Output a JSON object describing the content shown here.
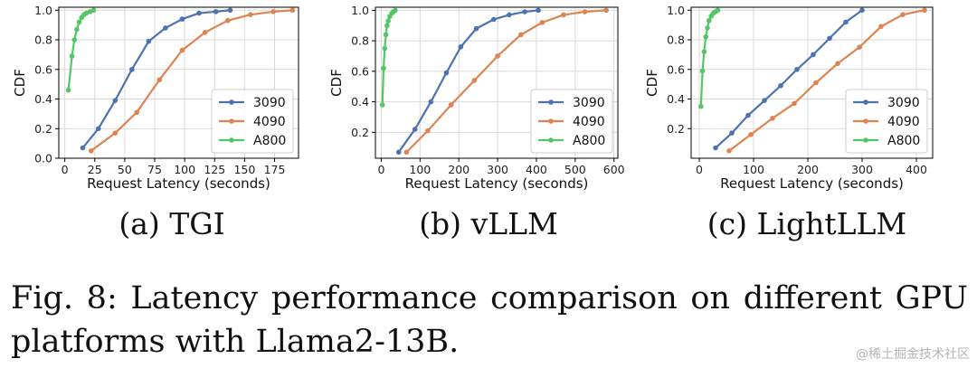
{
  "chart_data": [
    {
      "type": "line",
      "title": "",
      "xlabel": "Request Latency (seconds)",
      "ylabel": "CDF",
      "xlim": [
        -5,
        195
      ],
      "ylim": [
        0,
        1.02
      ],
      "xticks": [
        0,
        25,
        50,
        75,
        100,
        125,
        150,
        175
      ],
      "yticks": [
        0.0,
        0.2,
        0.4,
        0.6,
        0.8,
        1.0
      ],
      "ytick_labels": [
        "0.0",
        "0.2",
        "0.4",
        "0.6",
        "0.8",
        "1.0"
      ],
      "grid": true,
      "legend_position": "lower-right",
      "series": [
        {
          "name": "3090",
          "color": "#4c72b0",
          "x": [
            15,
            28,
            42,
            56,
            70,
            84,
            98,
            112,
            126,
            138
          ],
          "y": [
            0.07,
            0.2,
            0.39,
            0.6,
            0.79,
            0.88,
            0.94,
            0.98,
            0.99,
            1.0
          ]
        },
        {
          "name": "4090",
          "color": "#dd8452",
          "x": [
            22,
            42,
            60,
            79,
            98,
            117,
            136,
            155,
            174,
            190
          ],
          "y": [
            0.05,
            0.17,
            0.31,
            0.53,
            0.73,
            0.85,
            0.93,
            0.97,
            0.99,
            1.0
          ]
        },
        {
          "name": "A800",
          "color": "#55c667",
          "x": [
            3,
            6,
            8,
            10,
            12,
            14,
            16,
            18,
            21,
            24
          ],
          "y": [
            0.46,
            0.69,
            0.8,
            0.87,
            0.92,
            0.95,
            0.97,
            0.98,
            0.99,
            1.0
          ]
        }
      ]
    },
    {
      "type": "line",
      "title": "",
      "xlabel": "Request Latency (seconds)",
      "ylabel": "CDF",
      "xlim": [
        -15,
        610
      ],
      "ylim": [
        0.03,
        1.02
      ],
      "xticks": [
        0,
        100,
        200,
        300,
        400,
        500,
        600
      ],
      "yticks": [
        0.2,
        0.4,
        0.6,
        0.8,
        1.0
      ],
      "ytick_labels": [
        "0.2",
        "0.4",
        "0.6",
        "0.8",
        "1.0"
      ],
      "grid": true,
      "legend_position": "lower-right",
      "series": [
        {
          "name": "3090",
          "color": "#4c72b0",
          "x": [
            45,
            87,
            128,
            168,
            205,
            245,
            290,
            330,
            370,
            405
          ],
          "y": [
            0.07,
            0.22,
            0.4,
            0.59,
            0.76,
            0.88,
            0.94,
            0.97,
            0.99,
            1.0
          ]
        },
        {
          "name": "4090",
          "color": "#dd8452",
          "x": [
            65,
            120,
            180,
            240,
            300,
            360,
            415,
            470,
            525,
            580
          ],
          "y": [
            0.07,
            0.21,
            0.38,
            0.54,
            0.7,
            0.84,
            0.92,
            0.97,
            0.99,
            1.0
          ]
        },
        {
          "name": "A800",
          "color": "#55c667",
          "x": [
            3,
            6,
            9,
            12,
            15,
            18,
            22,
            27,
            31,
            36
          ],
          "y": [
            0.38,
            0.62,
            0.75,
            0.84,
            0.9,
            0.93,
            0.96,
            0.98,
            0.99,
            1.0
          ]
        }
      ]
    },
    {
      "type": "line",
      "title": "",
      "xlabel": "Request Latency (seconds)",
      "ylabel": "CDF",
      "xlim": [
        -15,
        430
      ],
      "ylim": [
        0.0,
        1.02
      ],
      "xticks": [
        0,
        100,
        200,
        300,
        400
      ],
      "yticks": [
        0.2,
        0.4,
        0.6,
        0.8,
        1.0
      ],
      "ytick_labels": [
        "0.2",
        "0.4",
        "0.6",
        "0.8",
        "1.0"
      ],
      "grid": true,
      "legend_position": "lower-right",
      "series": [
        {
          "name": "3090",
          "color": "#4c72b0",
          "x": [
            30,
            60,
            90,
            120,
            150,
            180,
            210,
            240,
            270,
            300
          ],
          "y": [
            0.07,
            0.17,
            0.29,
            0.39,
            0.49,
            0.6,
            0.7,
            0.81,
            0.92,
            1.0
          ]
        },
        {
          "name": "4090",
          "color": "#dd8452",
          "x": [
            55,
            95,
            135,
            175,
            215,
            255,
            295,
            335,
            375,
            415
          ],
          "y": [
            0.05,
            0.16,
            0.27,
            0.37,
            0.51,
            0.64,
            0.75,
            0.89,
            0.97,
            1.0
          ]
        },
        {
          "name": "A800",
          "color": "#55c667",
          "x": [
            3,
            6,
            9,
            12,
            15,
            18,
            22,
            26,
            30,
            34
          ],
          "y": [
            0.35,
            0.59,
            0.72,
            0.82,
            0.88,
            0.93,
            0.96,
            0.98,
            0.99,
            1.0
          ]
        }
      ]
    }
  ],
  "subcaptions": [
    "(a) TGI",
    "(b) vLLM",
    "(c) LightLLM"
  ],
  "caption": "Fig. 8: Latency performance comparison on different GPU platforms with Llama2-13B.",
  "watermark": "@稀土掘金技术社区"
}
